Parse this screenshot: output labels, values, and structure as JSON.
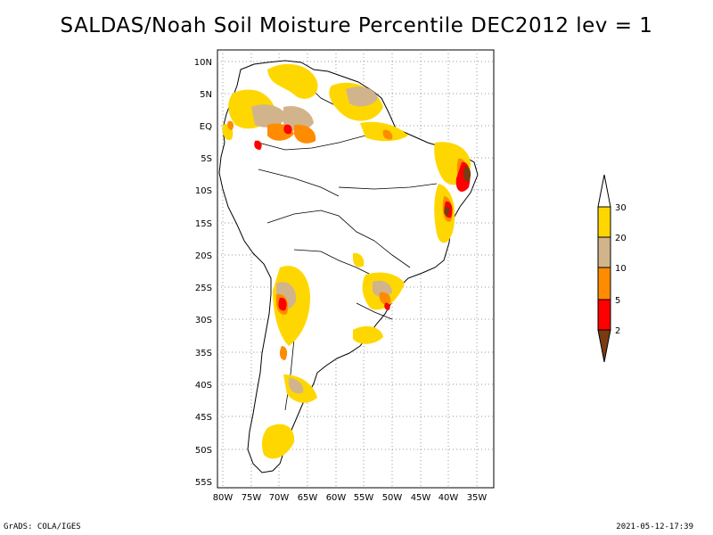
{
  "title": "SALDAS/Noah Soil Moisture Percentile DEC2012 lev = 1",
  "map": {
    "lat_ticks": [
      "10N",
      "5N",
      "EQ",
      "5S",
      "10S",
      "15S",
      "20S",
      "25S",
      "30S",
      "35S",
      "40S",
      "45S",
      "50S",
      "55S"
    ],
    "lon_ticks": [
      "80W",
      "75W",
      "70W",
      "65W",
      "60W",
      "55W",
      "50W",
      "45W",
      "40W",
      "35W"
    ],
    "lon_range": [
      -81,
      -32
    ],
    "lat_range": [
      -56,
      12
    ],
    "grid": "dotted",
    "region": "South America"
  },
  "legend": {
    "labels": [
      "2",
      "5",
      "10",
      "20",
      "30"
    ],
    "colors": {
      "below_2": "#7a3b10",
      "2_5": "#ff0000",
      "5_10": "#ff8c00",
      "10_20": "#d2b48c",
      "20_30": "#ffd700",
      "above_30": "#ffffff"
    }
  },
  "colors": {
    "yellow": "#ffd700",
    "tan": "#d2b48c",
    "orange": "#ff8c00",
    "red": "#ff0000",
    "brown": "#7a3b10"
  },
  "footer": {
    "left": "GrADS: COLA/IGES",
    "right": "2021-05-12-17:39"
  }
}
